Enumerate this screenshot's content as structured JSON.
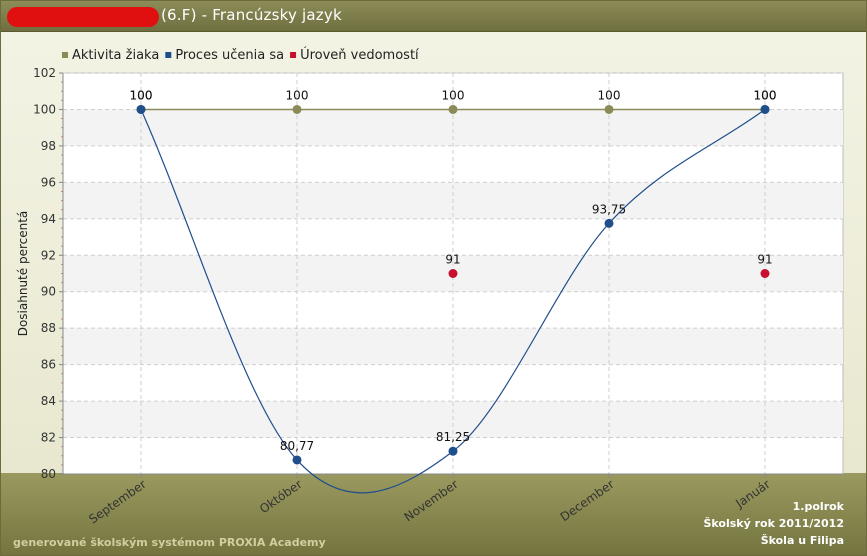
{
  "header": {
    "title": "(6.F) - Francúzsky jazyk"
  },
  "footer": {
    "generator": "generované školským systémom PROXIA Academy",
    "term": "1.polrok",
    "school_year": "Školský rok 2011/2012",
    "school": "Škola u Filipa"
  },
  "colors": {
    "aktivita": "#8b8b5a",
    "proces": "#1f4e8c",
    "uroven": "#c8102e",
    "header_bg": "#7a7a48",
    "plot_bg": "#ffffff"
  },
  "chart_data": {
    "type": "line",
    "title": "",
    "xlabel": "",
    "ylabel": "Dosiahnuté percentá",
    "categories": [
      "September",
      "Október",
      "November",
      "December",
      "Január"
    ],
    "ylim": [
      80,
      102
    ],
    "yticks": [
      "80",
      "82",
      "84",
      "86",
      "88",
      "90",
      "92",
      "94",
      "96",
      "98",
      "100",
      "102"
    ],
    "grid": true,
    "legend_position": "top-left",
    "series": [
      {
        "name": "Aktivita žiaka",
        "values": [
          100,
          100,
          100,
          100,
          100
        ],
        "labels": [
          "100",
          "100",
          "100",
          "100",
          "100"
        ],
        "line": "straight",
        "color_key": "aktivita"
      },
      {
        "name": "Proces učenia sa",
        "values": [
          100,
          80.77,
          81.25,
          93.75,
          100
        ],
        "labels": [
          "100",
          "80,77",
          "81,25",
          "93,75",
          "100"
        ],
        "line": "smooth",
        "color_key": "proces"
      },
      {
        "name": "Úroveň vedomostí",
        "values": [
          null,
          null,
          91,
          null,
          91
        ],
        "labels": [
          "",
          "",
          "91",
          "",
          "91"
        ],
        "line": "none",
        "color_key": "uroven"
      }
    ]
  }
}
